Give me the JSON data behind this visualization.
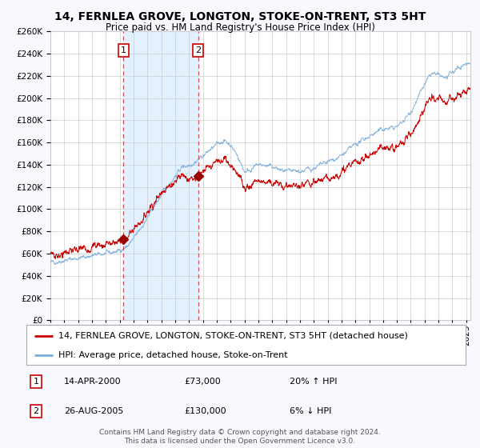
{
  "title": "14, FERNLEA GROVE, LONGTON, STOKE-ON-TRENT, ST3 5HT",
  "subtitle": "Price paid vs. HM Land Registry's House Price Index (HPI)",
  "legend_line1": "14, FERNLEA GROVE, LONGTON, STOKE-ON-TRENT, ST3 5HT (detached house)",
  "legend_line2": "HPI: Average price, detached house, Stoke-on-Trent",
  "annotation1_date": "14-APR-2000",
  "annotation1_price": "£73,000",
  "annotation1_hpi": "20% ↑ HPI",
  "annotation2_date": "26-AUG-2005",
  "annotation2_price": "£130,000",
  "annotation2_hpi": "6% ↓ HPI",
  "footer": "Contains HM Land Registry data © Crown copyright and database right 2024.\nThis data is licensed under the Open Government Licence v3.0.",
  "bg_color": "#f8f8ff",
  "plot_bg_color": "#ffffff",
  "grid_color": "#cccccc",
  "red_line_color": "#cc0000",
  "blue_line_color": "#7aaddb",
  "shade_color": "#ddeeff",
  "marker_color": "#990000",
  "vline_color": "#cc3333",
  "box_color": "#cc0000",
  "ylim_min": 0,
  "ylim_max": 260000,
  "xlim_start": 1995.0,
  "xlim_end": 2025.3,
  "sale1_year": 2000.28,
  "sale1_value": 73000,
  "sale2_year": 2005.65,
  "sale2_value": 130000,
  "title_fontsize": 10,
  "subtitle_fontsize": 8.5,
  "axis_fontsize": 7.5,
  "legend_fontsize": 8,
  "footer_fontsize": 6.5
}
